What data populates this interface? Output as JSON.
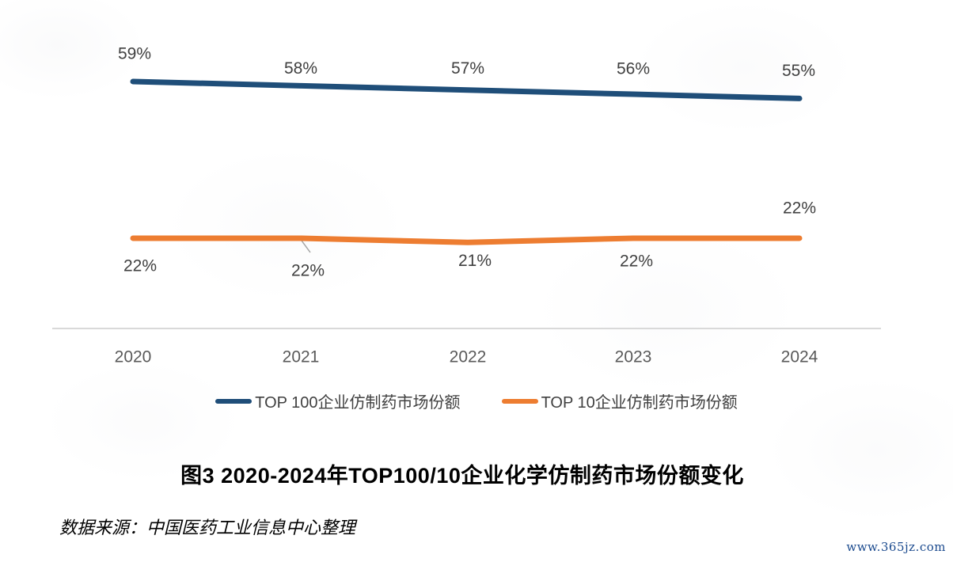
{
  "watermark": "www.365jz.com",
  "chart_data": {
    "type": "line",
    "title": "图3 2020-2024年TOP100/10企业化学仿制药市场份额变化",
    "source": "数据来源：中国医药工业信息中心整理",
    "categories": [
      "2020",
      "2021",
      "2022",
      "2023",
      "2024"
    ],
    "series": [
      {
        "name": "TOP 100企业仿制药市场份额",
        "values": [
          59,
          58,
          57,
          56,
          55
        ],
        "labels": [
          "59%",
          "58%",
          "57%",
          "56%",
          "55%"
        ],
        "color": "#1F4E79"
      },
      {
        "name": "TOP 10企业仿制药市场份额",
        "values": [
          22,
          22,
          21,
          22,
          22
        ],
        "labels": [
          "22%",
          "22%",
          "21%",
          "22%",
          "22%"
        ],
        "color": "#ED7D31"
      }
    ],
    "unit": "%",
    "legend_position": "bottom",
    "grid": false,
    "y_axis_visible": false,
    "colors": {
      "data_label_text": "#404040",
      "tick_text": "#595959",
      "axis_line": "#d9d9d9",
      "leader_line": "#a6a6a6"
    }
  }
}
